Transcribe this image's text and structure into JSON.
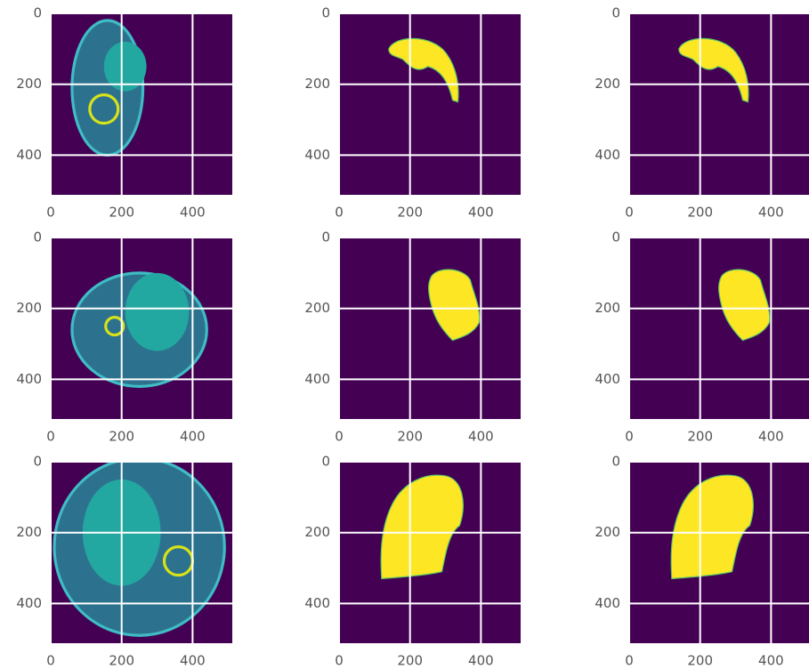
{
  "chart_data": [
    {
      "type": "image",
      "xlim": [
        0,
        512
      ],
      "ylim": [
        512,
        0
      ],
      "xticks": [
        0,
        200,
        400
      ],
      "yticks": [
        0,
        200,
        400
      ],
      "grid": true
    },
    {
      "type": "image",
      "xlim": [
        0,
        512
      ],
      "ylim": [
        512,
        0
      ],
      "xticks": [
        0,
        200,
        400
      ],
      "yticks": [
        0,
        200,
        400
      ],
      "grid": true
    },
    {
      "type": "image",
      "xlim": [
        0,
        512
      ],
      "ylim": [
        512,
        0
      ],
      "xticks": [
        0,
        200,
        400
      ],
      "yticks": [
        0,
        200,
        400
      ],
      "grid": true
    },
    {
      "type": "image",
      "xlim": [
        0,
        512
      ],
      "ylim": [
        512,
        0
      ],
      "xticks": [
        0,
        200,
        400
      ],
      "yticks": [
        0,
        200,
        400
      ],
      "grid": true
    },
    {
      "type": "image",
      "xlim": [
        0,
        512
      ],
      "ylim": [
        512,
        0
      ],
      "xticks": [
        0,
        200,
        400
      ],
      "yticks": [
        0,
        200,
        400
      ],
      "grid": true
    },
    {
      "type": "image",
      "xlim": [
        0,
        512
      ],
      "ylim": [
        512,
        0
      ],
      "xticks": [
        0,
        200,
        400
      ],
      "yticks": [
        0,
        200,
        400
      ],
      "grid": true
    },
    {
      "type": "image",
      "xlim": [
        0,
        512
      ],
      "ylim": [
        512,
        0
      ],
      "xticks": [
        0,
        200,
        400
      ],
      "yticks": [
        0,
        200,
        400
      ],
      "grid": true
    },
    {
      "type": "image",
      "xlim": [
        0,
        512
      ],
      "ylim": [
        512,
        0
      ],
      "xticks": [
        0,
        200,
        400
      ],
      "yticks": [
        0,
        200,
        400
      ],
      "grid": true
    },
    {
      "type": "image",
      "xlim": [
        0,
        512
      ],
      "ylim": [
        512,
        0
      ],
      "xticks": [
        0,
        200,
        400
      ],
      "yticks": [
        0,
        200,
        400
      ],
      "grid": true
    }
  ]
}
